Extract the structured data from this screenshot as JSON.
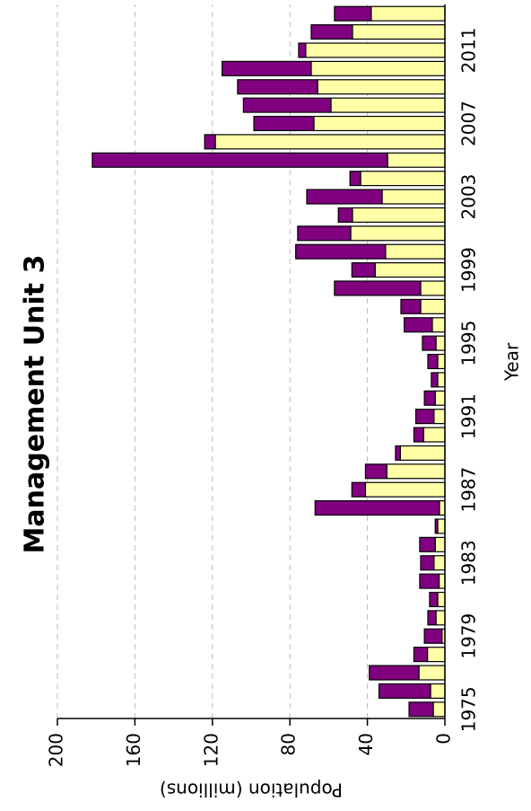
{
  "chart_data": {
    "type": "stacked_bar",
    "title": "Management Unit 3",
    "x_label": "Year",
    "y_label": "Population (millions)",
    "categories": [
      "1975",
      null,
      null,
      null,
      "1979",
      null,
      null,
      null,
      "1983",
      null,
      null,
      null,
      "1987",
      null,
      null,
      null,
      "1991",
      null,
      null,
      null,
      "1995",
      null,
      null,
      null,
      "1999",
      null,
      null,
      null,
      "2003",
      null,
      null,
      null,
      "2007",
      null,
      null,
      null,
      "2011",
      null,
      null
    ],
    "series": [
      {
        "color": "#ffffa8",
        "values": [
          6,
          7.4,
          13.4,
          9,
          1.5,
          4.6,
          3.7,
          3,
          5.6,
          5,
          3.7,
          2.8,
          41,
          30,
          23,
          11,
          5.6,
          5,
          3.7,
          3.7,
          4.6,
          6.5,
          12.5,
          12.5,
          36,
          30.6,
          48.6,
          47.7,
          32.4,
          43.5,
          29.6,
          118.5,
          67.6,
          58.8,
          65.7,
          69,
          71.8,
          47.7,
          38
        ]
      },
      {
        "color": "#800080",
        "values": [
          12.5,
          26.6,
          25.6,
          7,
          9.1,
          4.2,
          4.2,
          10,
          6.9,
          8,
          1.3,
          64.2,
          7,
          11,
          2.5,
          5,
          9.4,
          5.6,
          3.3,
          5.1,
          7,
          14.5,
          10.2,
          44.5,
          12,
          46.4,
          27.4,
          7.3,
          38.9,
          5.5,
          152.4,
          5.5,
          31,
          45.2,
          41.3,
          46,
          3.7,
          21.3,
          19
        ]
      }
    ],
    "ylim": [
      0,
      200
    ],
    "yticks": [
      0,
      40,
      80,
      120,
      160,
      200
    ],
    "grid": true,
    "rotation": -90
  }
}
